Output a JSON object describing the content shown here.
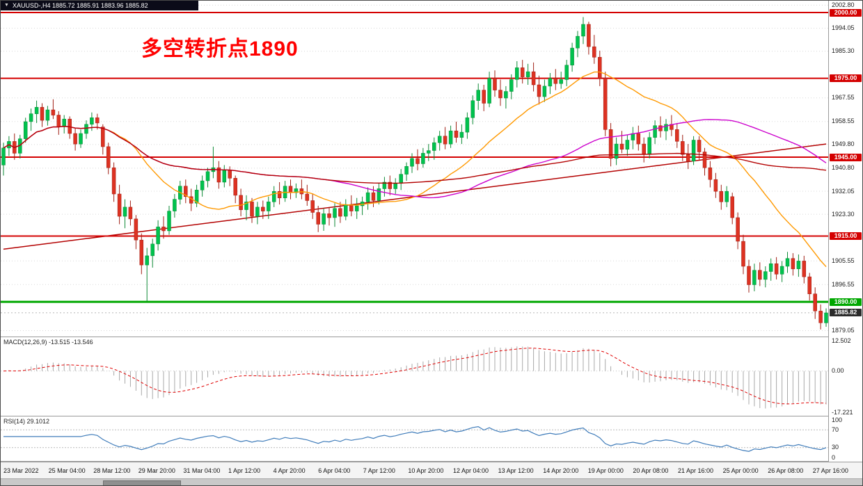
{
  "window": {
    "title": "XAUUSD-,H4  1885.72 1885.91 1883.96 1885.82"
  },
  "annotation": {
    "text": "多空转折点1890",
    "color": "#ff0000"
  },
  "colors": {
    "up": "#00c24e",
    "up_border": "#0e8a36",
    "down": "#dd3222",
    "down_border": "#a01f14",
    "grid": "#d8d8d8",
    "level_red": "#d40000",
    "level_green": "#00a800",
    "current_tag": "#2b2b2b",
    "ma_fast": "#ff9900",
    "ma_mid": "#cc00cc",
    "ma_slow": "#b30000",
    "macd_hist": "#a8a8a8",
    "macd_signal": "#e00000",
    "rsi_line": "#3f7cba",
    "titlebar_bg": "#0b0b18"
  },
  "chart_data": {
    "type": "candlestick",
    "symbol": "XAUUSD-",
    "timeframe": "H4",
    "title_quote": "1885.72 1885.91 1883.96 1885.82",
    "ylim": [
      1876.8,
      2004.5
    ],
    "price_ticks": [
      {
        "v": 2002.8,
        "t": "2002.80"
      },
      {
        "v": 1994.05,
        "t": "1994.05"
      },
      {
        "v": 1985.3,
        "t": "1985.30"
      },
      {
        "v": 1967.55,
        "t": "1967.55"
      },
      {
        "v": 1958.55,
        "t": "1958.55"
      },
      {
        "v": 1949.8,
        "t": "1949.80"
      },
      {
        "v": 1940.8,
        "t": "1940.80"
      },
      {
        "v": 1932.05,
        "t": "1932.05"
      },
      {
        "v": 1923.3,
        "t": "1923.30"
      },
      {
        "v": 1905.55,
        "t": "1905.55"
      },
      {
        "v": 1896.55,
        "t": "1896.55"
      },
      {
        "v": 1879.05,
        "t": "1879.05"
      }
    ],
    "levels": [
      {
        "v": 2000.0,
        "t": "2000.00",
        "color": "#d40000",
        "lw": 2
      },
      {
        "v": 1975.0,
        "t": "1975.00",
        "color": "#d40000",
        "lw": 2
      },
      {
        "v": 1945.0,
        "t": "1945.00",
        "color": "#d40000",
        "lw": 2
      },
      {
        "v": 1915.0,
        "t": "1915.00",
        "color": "#d40000",
        "lw": 2
      },
      {
        "v": 1890.0,
        "t": "1890.00",
        "color": "#00a800",
        "lw": 3
      }
    ],
    "current_price": {
      "v": 1885.82,
      "t": "1885.82"
    },
    "trendline": {
      "x1": 0,
      "p1": 1910.0,
      "x2": 149,
      "p2": 1950.0,
      "color": "#b30000"
    },
    "moving_averages": [
      {
        "name": "ma-fast",
        "period": 20,
        "color": "#ff9900"
      },
      {
        "name": "ma-mid",
        "period": 60,
        "color": "#cc00cc"
      },
      {
        "name": "ma-slow",
        "period": 120,
        "color": "#b30000"
      }
    ],
    "time_labels": [
      "23 Mar 2022",
      "25 Mar 04:00",
      "28 Mar 12:00",
      "29 Mar 20:00",
      "31 Mar 04:00",
      "1 Apr 12:00",
      "4 Apr 20:00",
      "6 Apr 04:00",
      "7 Apr 12:00",
      "10 Apr 20:00",
      "12 Apr 04:00",
      "13 Apr 12:00",
      "14 Apr 20:00",
      "19 Apr 00:00",
      "20 Apr 08:00",
      "21 Apr 16:00",
      "25 Apr 00:00",
      "26 Apr 08:00",
      "27 Apr 16:00"
    ],
    "ohlc": [
      [
        1942.0,
        1950.5,
        1938.0,
        1948.5
      ],
      [
        1948.5,
        1953.0,
        1945.5,
        1951.0
      ],
      [
        1951.0,
        1954.0,
        1944.0,
        1946.5
      ],
      [
        1946.5,
        1953.5,
        1944.5,
        1952.0
      ],
      [
        1952.0,
        1960.0,
        1950.5,
        1958.5
      ],
      [
        1958.5,
        1963.5,
        1955.0,
        1961.5
      ],
      [
        1961.5,
        1966.5,
        1958.0,
        1964.0
      ],
      [
        1964.0,
        1965.5,
        1956.5,
        1959.0
      ],
      [
        1959.0,
        1964.5,
        1957.0,
        1963.0
      ],
      [
        1963.0,
        1967.0,
        1959.5,
        1961.0
      ],
      [
        1961.0,
        1962.5,
        1953.5,
        1956.5
      ],
      [
        1956.5,
        1961.0,
        1954.0,
        1959.5
      ],
      [
        1959.5,
        1960.5,
        1952.0,
        1954.0
      ],
      [
        1954.0,
        1956.0,
        1947.5,
        1950.0
      ],
      [
        1950.0,
        1955.5,
        1948.5,
        1954.0
      ],
      [
        1954.0,
        1959.0,
        1952.0,
        1957.5
      ],
      [
        1957.5,
        1962.0,
        1955.0,
        1960.0
      ],
      [
        1960.0,
        1961.5,
        1955.5,
        1958.0
      ],
      [
        1956.5,
        1957.5,
        1946.0,
        1949.0
      ],
      [
        1949.0,
        1950.5,
        1938.5,
        1941.0
      ],
      [
        1941.0,
        1943.0,
        1928.0,
        1931.0
      ],
      [
        1931.0,
        1934.5,
        1919.5,
        1922.5
      ],
      [
        1922.5,
        1929.0,
        1918.0,
        1926.0
      ],
      [
        1926.0,
        1928.5,
        1919.0,
        1921.5
      ],
      [
        1921.5,
        1923.0,
        1910.0,
        1913.5
      ],
      [
        1913.5,
        1916.0,
        1900.5,
        1904.0
      ],
      [
        1904.0,
        1910.5,
        1890.2,
        1907.5
      ],
      [
        1907.5,
        1914.0,
        1903.0,
        1912.0
      ],
      [
        1912.0,
        1921.0,
        1909.5,
        1918.5
      ],
      [
        1918.5,
        1922.5,
        1914.0,
        1917.0
      ],
      [
        1917.0,
        1926.5,
        1915.5,
        1924.5
      ],
      [
        1924.5,
        1931.0,
        1922.0,
        1929.0
      ],
      [
        1929.0,
        1936.0,
        1927.0,
        1934.0
      ],
      [
        1934.0,
        1936.5,
        1927.5,
        1930.0
      ],
      [
        1930.0,
        1933.0,
        1924.5,
        1927.5
      ],
      [
        1927.5,
        1934.5,
        1926.0,
        1932.5
      ],
      [
        1932.5,
        1938.0,
        1930.0,
        1936.0
      ],
      [
        1936.0,
        1941.0,
        1933.5,
        1939.5
      ],
      [
        1939.5,
        1949.0,
        1937.0,
        1941.0
      ],
      [
        1941.0,
        1943.5,
        1933.0,
        1935.5
      ],
      [
        1935.5,
        1942.0,
        1933.5,
        1940.0
      ],
      [
        1940.0,
        1941.5,
        1934.0,
        1937.0
      ],
      [
        1937.0,
        1938.0,
        1927.5,
        1930.5
      ],
      [
        1930.5,
        1933.0,
        1922.5,
        1925.0
      ],
      [
        1925.0,
        1930.5,
        1921.0,
        1928.0
      ],
      [
        1928.0,
        1929.5,
        1920.0,
        1922.5
      ],
      [
        1922.5,
        1928.0,
        1919.5,
        1926.0
      ],
      [
        1926.0,
        1928.5,
        1921.5,
        1924.5
      ],
      [
        1924.5,
        1930.0,
        1921.5,
        1928.0
      ],
      [
        1928.0,
        1934.0,
        1926.0,
        1932.0
      ],
      [
        1932.0,
        1935.5,
        1927.0,
        1929.5
      ],
      [
        1929.5,
        1936.0,
        1928.0,
        1934.0
      ],
      [
        1934.0,
        1936.5,
        1929.0,
        1931.5
      ],
      [
        1931.5,
        1935.0,
        1929.5,
        1933.0
      ],
      [
        1933.0,
        1936.5,
        1929.0,
        1931.0
      ],
      [
        1931.0,
        1934.5,
        1926.5,
        1928.5
      ],
      [
        1928.5,
        1931.0,
        1921.5,
        1924.0
      ],
      [
        1924.0,
        1926.5,
        1916.5,
        1919.5
      ],
      [
        1919.5,
        1925.5,
        1917.0,
        1923.5
      ],
      [
        1923.5,
        1926.0,
        1919.0,
        1922.0
      ],
      [
        1922.0,
        1927.5,
        1918.5,
        1925.5
      ],
      [
        1925.5,
        1928.0,
        1920.0,
        1922.5
      ],
      [
        1922.5,
        1929.0,
        1921.0,
        1927.0
      ],
      [
        1927.0,
        1930.5,
        1922.5,
        1924.5
      ],
      [
        1924.5,
        1929.5,
        1921.5,
        1926.5
      ],
      [
        1926.5,
        1930.0,
        1923.0,
        1928.0
      ],
      [
        1928.0,
        1933.5,
        1925.0,
        1931.5
      ],
      [
        1931.5,
        1934.0,
        1926.0,
        1928.5
      ],
      [
        1928.5,
        1935.0,
        1927.0,
        1933.0
      ],
      [
        1933.0,
        1937.5,
        1930.0,
        1935.5
      ],
      [
        1935.5,
        1938.0,
        1930.5,
        1933.0
      ],
      [
        1933.0,
        1937.0,
        1931.0,
        1935.0
      ],
      [
        1935.0,
        1940.5,
        1932.5,
        1938.5
      ],
      [
        1938.5,
        1943.0,
        1936.0,
        1941.5
      ],
      [
        1941.5,
        1946.5,
        1939.0,
        1944.5
      ],
      [
        1944.5,
        1948.0,
        1940.0,
        1942.5
      ],
      [
        1942.5,
        1948.5,
        1941.0,
        1946.5
      ],
      [
        1946.5,
        1950.0,
        1943.5,
        1947.5
      ],
      [
        1947.5,
        1952.5,
        1944.0,
        1950.5
      ],
      [
        1950.5,
        1955.0,
        1947.5,
        1953.0
      ],
      [
        1953.0,
        1956.5,
        1948.0,
        1950.0
      ],
      [
        1950.0,
        1957.0,
        1948.5,
        1955.0
      ],
      [
        1955.0,
        1958.5,
        1950.5,
        1952.5
      ],
      [
        1952.5,
        1957.5,
        1950.0,
        1954.5
      ],
      [
        1954.5,
        1962.0,
        1952.0,
        1960.0
      ],
      [
        1960.0,
        1968.5,
        1957.5,
        1966.5
      ],
      [
        1966.5,
        1973.0,
        1963.0,
        1970.5
      ],
      [
        1970.5,
        1972.5,
        1962.5,
        1965.5
      ],
      [
        1965.5,
        1977.5,
        1964.0,
        1975.0
      ],
      [
        1975.0,
        1978.0,
        1968.0,
        1970.5
      ],
      [
        1970.5,
        1974.5,
        1964.5,
        1967.5
      ],
      [
        1967.5,
        1972.0,
        1963.5,
        1970.0
      ],
      [
        1970.0,
        1976.5,
        1967.0,
        1974.5
      ],
      [
        1974.5,
        1981.5,
        1971.5,
        1979.0
      ],
      [
        1979.0,
        1982.0,
        1973.0,
        1975.5
      ],
      [
        1975.5,
        1980.5,
        1972.5,
        1977.5
      ],
      [
        1977.5,
        1981.0,
        1970.0,
        1972.5
      ],
      [
        1972.5,
        1976.0,
        1965.0,
        1968.0
      ],
      [
        1968.0,
        1974.5,
        1966.0,
        1972.0
      ],
      [
        1972.0,
        1977.0,
        1969.0,
        1975.0
      ],
      [
        1975.0,
        1978.5,
        1970.5,
        1973.0
      ],
      [
        1973.0,
        1977.5,
        1971.0,
        1974.5
      ],
      [
        1974.5,
        1982.0,
        1972.0,
        1980.0
      ],
      [
        1980.0,
        1988.5,
        1977.5,
        1986.5
      ],
      [
        1986.5,
        1993.0,
        1983.0,
        1991.0
      ],
      [
        1991.0,
        1998.3,
        1988.0,
        1995.5
      ],
      [
        1995.5,
        1996.5,
        1984.0,
        1987.0
      ],
      [
        1987.0,
        1991.5,
        1980.5,
        1983.0
      ],
      [
        1983.0,
        1985.5,
        1972.0,
        1975.0
      ],
      [
        1975.0,
        1977.5,
        1953.0,
        1955.5
      ],
      [
        1955.5,
        1958.0,
        1941.5,
        1944.5
      ],
      [
        1944.5,
        1952.5,
        1942.0,
        1950.0
      ],
      [
        1950.0,
        1955.0,
        1946.5,
        1948.0
      ],
      [
        1948.0,
        1953.5,
        1945.5,
        1951.5
      ],
      [
        1951.5,
        1956.5,
        1948.0,
        1954.0
      ],
      [
        1954.0,
        1957.0,
        1947.5,
        1950.0
      ],
      [
        1950.0,
        1952.5,
        1943.0,
        1946.0
      ],
      [
        1946.0,
        1954.5,
        1944.5,
        1952.5
      ],
      [
        1952.5,
        1959.0,
        1950.0,
        1957.0
      ],
      [
        1957.0,
        1960.5,
        1952.5,
        1955.0
      ],
      [
        1955.0,
        1959.5,
        1951.5,
        1957.5
      ],
      [
        1957.5,
        1961.0,
        1953.0,
        1955.5
      ],
      [
        1955.5,
        1958.0,
        1948.5,
        1951.0
      ],
      [
        1951.0,
        1953.5,
        1943.5,
        1946.0
      ],
      [
        1946.0,
        1950.0,
        1940.5,
        1943.5
      ],
      [
        1943.5,
        1953.0,
        1942.0,
        1951.5
      ],
      [
        1951.5,
        1953.0,
        1944.0,
        1947.0
      ],
      [
        1947.0,
        1948.5,
        1938.0,
        1941.0
      ],
      [
        1941.0,
        1943.5,
        1933.5,
        1936.5
      ],
      [
        1936.5,
        1939.0,
        1929.5,
        1932.0
      ],
      [
        1932.0,
        1934.5,
        1925.0,
        1928.0
      ],
      [
        1928.0,
        1934.0,
        1926.0,
        1932.0
      ],
      [
        1930.0,
        1931.5,
        1919.5,
        1922.0
      ],
      [
        1922.0,
        1924.0,
        1910.0,
        1913.0
      ],
      [
        1913.0,
        1915.5,
        1900.5,
        1903.5
      ],
      [
        1903.5,
        1906.0,
        1893.5,
        1896.5
      ],
      [
        1896.5,
        1904.5,
        1894.0,
        1902.0
      ],
      [
        1902.0,
        1905.0,
        1896.0,
        1898.5
      ],
      [
        1898.5,
        1903.5,
        1895.5,
        1901.5
      ],
      [
        1901.5,
        1906.5,
        1898.0,
        1904.5
      ],
      [
        1904.5,
        1907.0,
        1898.5,
        1900.5
      ],
      [
        1900.5,
        1905.5,
        1897.5,
        1903.5
      ],
      [
        1903.5,
        1909.0,
        1901.0,
        1906.5
      ],
      [
        1906.5,
        1908.5,
        1900.0,
        1902.5
      ],
      [
        1902.5,
        1908.0,
        1899.5,
        1905.5
      ],
      [
        1905.5,
        1907.5,
        1897.0,
        1899.5
      ],
      [
        1899.5,
        1901.0,
        1890.5,
        1893.0
      ],
      [
        1893.0,
        1895.5,
        1883.5,
        1886.5
      ],
      [
        1886.5,
        1889.0,
        1879.5,
        1882.0
      ],
      [
        1882.0,
        1887.5,
        1880.5,
        1885.8
      ]
    ],
    "indicators": {
      "macd": {
        "label": "MACD(12,26,9) -13.515 -13.546",
        "fast": 12,
        "slow": 26,
        "signal": 9,
        "ylim": [
          -18.3,
          13.8
        ],
        "axis": [
          {
            "v": 12.502,
            "t": "12.502"
          },
          {
            "v": 0,
            "t": "0.00"
          },
          {
            "v": -17.221,
            "t": "-17.221"
          }
        ]
      },
      "rsi": {
        "label": "RSI(14) 29.1012",
        "period": 14,
        "ylim": [
          0,
          100
        ],
        "levels": [
          70,
          30
        ],
        "axis": [
          {
            "v": 100,
            "t": "100"
          },
          {
            "v": 70,
            "t": "70"
          },
          {
            "v": 30,
            "t": "30"
          },
          {
            "v": 0,
            "t": "0"
          }
        ]
      }
    }
  }
}
